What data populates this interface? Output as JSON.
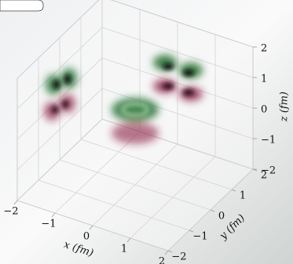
{
  "chart_data": {
    "type": "volume3d",
    "xlabel": "x (fm)",
    "ylabel": "y (fm)",
    "zlabel": "z (fm)",
    "xlim": [
      -2,
      2
    ],
    "ylim": [
      -2,
      2
    ],
    "zlim": [
      -2,
      2
    ],
    "xticks": [
      {
        "value": -2,
        "label": "−2"
      },
      {
        "value": -1,
        "label": "−1"
      },
      0,
      1,
      2
    ],
    "yticks": [
      {
        "value": -2,
        "label": "−2"
      },
      {
        "value": -1,
        "label": "−1"
      },
      0,
      1,
      2
    ],
    "zticks": [
      {
        "value": -2,
        "label": "−2"
      },
      {
        "value": -1,
        "label": "−1"
      },
      0,
      1,
      2
    ],
    "grid": true
  }
}
